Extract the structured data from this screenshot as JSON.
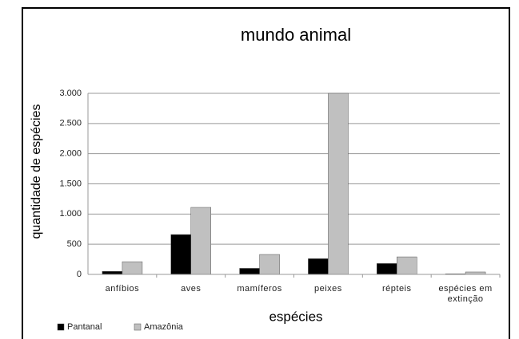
{
  "chart_data": {
    "type": "bar",
    "title": "mundo animal",
    "x_label": "espécies",
    "y_label": "quantidade de espécies",
    "categories": [
      "anfíbios",
      "aves",
      "mamíferos",
      "peixes",
      "répteis",
      "espécies em extinção"
    ],
    "series": [
      {
        "name": "Pantanal",
        "color": "#000000",
        "values": [
          50,
          660,
          100,
          260,
          180,
          10
        ]
      },
      {
        "name": "Amazônia",
        "color": "#c0c0c0",
        "values": [
          210,
          1110,
          330,
          3000,
          290,
          40
        ]
      }
    ],
    "ylim": [
      0,
      3000
    ],
    "yticks": [
      0,
      500,
      {
        "value": 1000,
        "label": "1.000"
      },
      {
        "value": 1500,
        "label": "1.500"
      },
      {
        "value": 2000,
        "label": "2.000"
      },
      {
        "value": 2500,
        "label": "2.500"
      },
      {
        "value": 3000,
        "label": "3.000"
      }
    ],
    "grid": true,
    "legend": "bottom-left"
  }
}
